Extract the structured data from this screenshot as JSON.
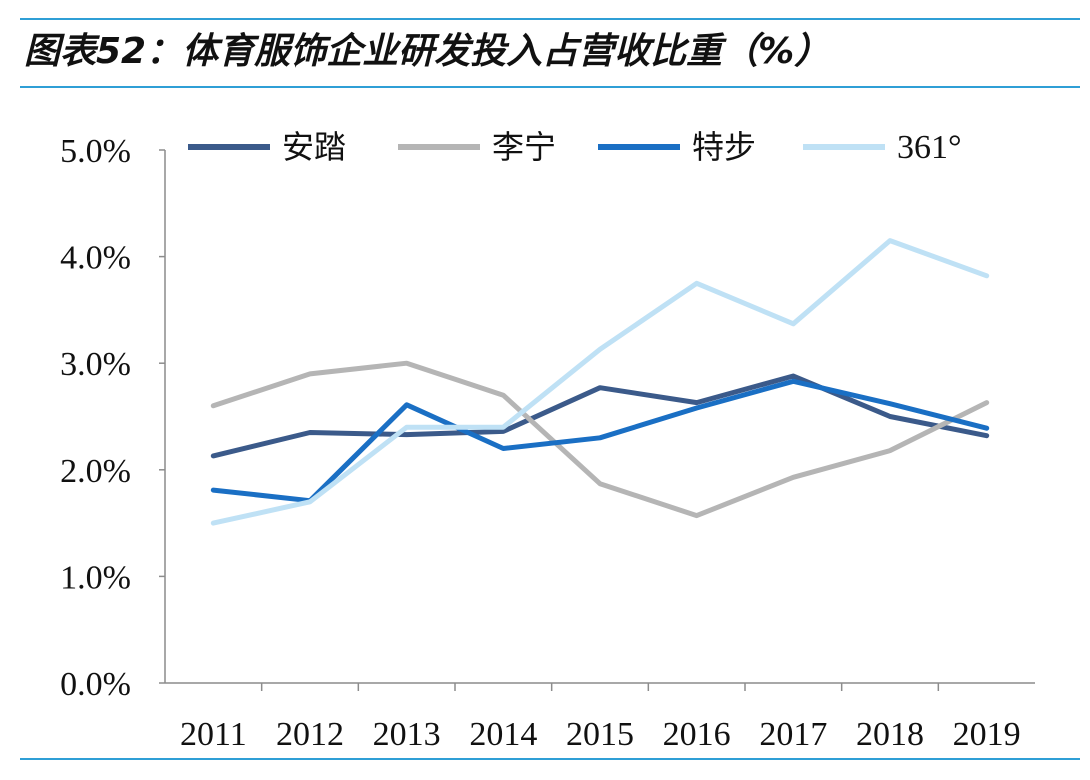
{
  "header": {
    "title": "图表52：体育服饰企业研发投入占营收比重（%）"
  },
  "chart_data": {
    "type": "line",
    "title": "图表52：体育服饰企业研发投入占营收比重（%）",
    "xlabel": "",
    "ylabel": "",
    "x": [
      "2011",
      "2012",
      "2013",
      "2014",
      "2015",
      "2016",
      "2017",
      "2018",
      "2019"
    ],
    "ylim": [
      0,
      5
    ],
    "y_ticks": [
      0,
      1,
      2,
      3,
      4,
      5
    ],
    "y_tick_labels": [
      "0.0%",
      "1.0%",
      "2.0%",
      "3.0%",
      "4.0%",
      "5.0%"
    ],
    "grid": false,
    "legend_position": "top",
    "series": [
      {
        "name": "安踏",
        "color": "#3b5a8a",
        "values": [
          2.13,
          2.35,
          2.33,
          2.36,
          2.77,
          2.63,
          2.88,
          2.5,
          2.32
        ]
      },
      {
        "name": "李宁",
        "color": "#b5b5b5",
        "values": [
          2.6,
          2.9,
          3.0,
          2.7,
          1.87,
          1.57,
          1.93,
          2.18,
          2.63
        ]
      },
      {
        "name": "特步",
        "color": "#1a6fc4",
        "values": [
          1.81,
          1.71,
          2.61,
          2.2,
          2.3,
          2.58,
          2.83,
          2.62,
          2.39
        ]
      },
      {
        "name": "361°",
        "color": "#bfe1f5",
        "values": [
          1.5,
          1.7,
          2.4,
          2.4,
          3.13,
          3.75,
          3.37,
          4.15,
          3.82
        ]
      }
    ]
  }
}
